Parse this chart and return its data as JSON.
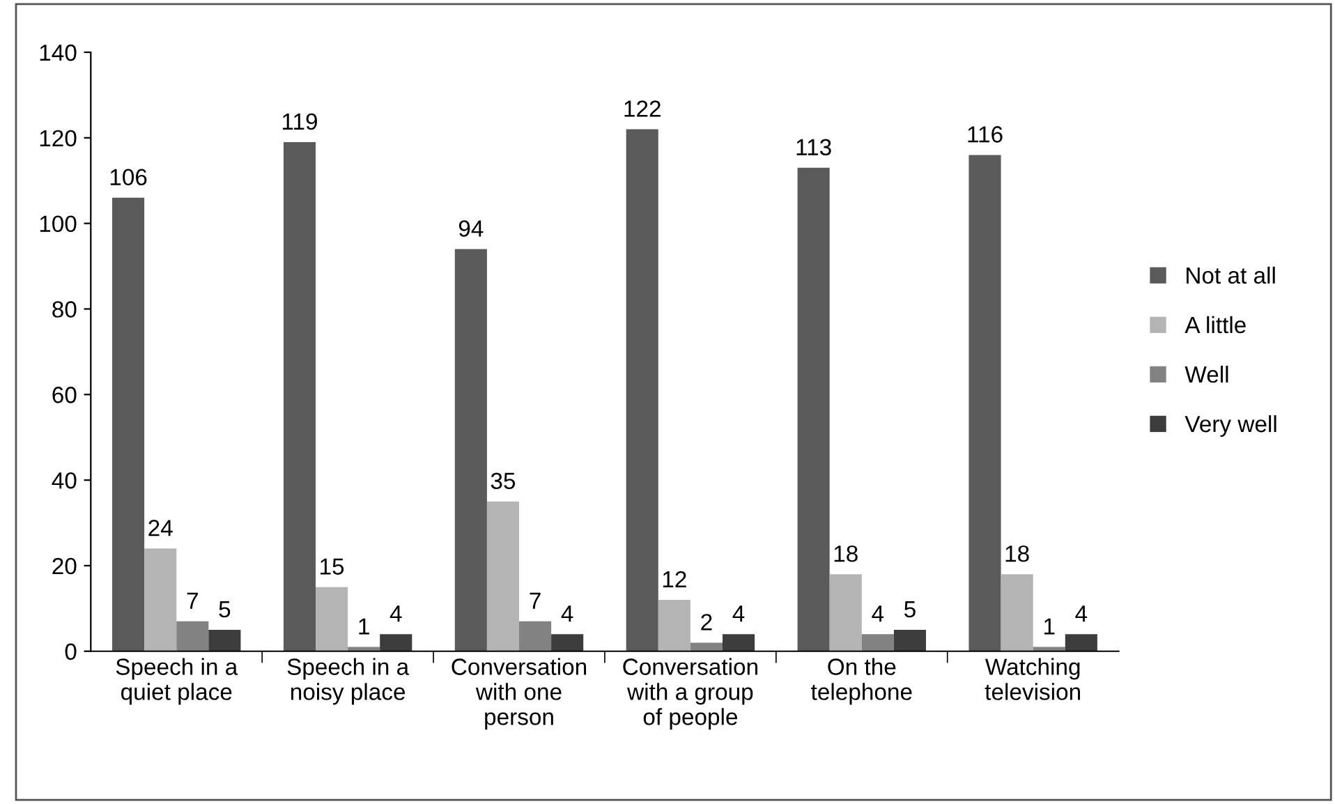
{
  "chart_data": {
    "type": "bar",
    "categories": [
      "Speech in a\nquiet place",
      "Speech in a\nnoisy place",
      "Conversation\nwith one\nperson",
      "Conversation\nwith a group\nof people",
      "On the\ntelephone",
      "Watching\ntelevision"
    ],
    "series": [
      {
        "name": "Not at all",
        "color": "#5a5a5a",
        "values": [
          106,
          119,
          94,
          122,
          113,
          116
        ]
      },
      {
        "name": "A little",
        "color": "#b4b4b4",
        "values": [
          24,
          15,
          35,
          12,
          18,
          18
        ]
      },
      {
        "name": "Well",
        "color": "#828282",
        "values": [
          7,
          1,
          7,
          2,
          4,
          1
        ]
      },
      {
        "name": "Very well",
        "color": "#3c3c3c",
        "values": [
          5,
          4,
          4,
          4,
          5,
          4
        ]
      }
    ],
    "ylim": [
      0,
      140
    ],
    "yticks": [
      0,
      20,
      40,
      60,
      80,
      100,
      120,
      140
    ],
    "data_labels": true,
    "grid": false,
    "legend": "right"
  }
}
